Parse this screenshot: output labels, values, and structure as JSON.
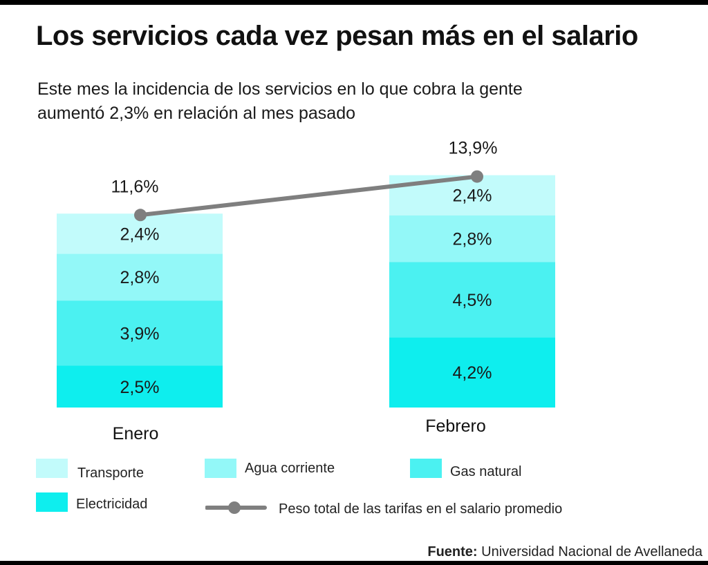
{
  "header": {
    "title": "Los servicios cada vez pesan más en el salario",
    "subtitle_line1": "Este mes la incidencia de los servicios en lo que cobra la gente",
    "subtitle_line2": "aumentó 2,3% en relación al mes pasado"
  },
  "colors": {
    "transporte": "#c2fbfb",
    "agua": "#93f8f8",
    "gas": "#4bf1f1",
    "electricidad": "#0eeeee",
    "line": "#7f7f7f"
  },
  "chart_data": {
    "type": "bar",
    "stacked": true,
    "categories": [
      "Enero",
      "Febrero"
    ],
    "series": [
      {
        "name": "Electricidad",
        "values": [
          2.5,
          4.2
        ],
        "labels": [
          "2,5%",
          "4,2%"
        ]
      },
      {
        "name": "Gas natural",
        "values": [
          3.9,
          4.5
        ],
        "labels": [
          "3,9%",
          "4,5%"
        ]
      },
      {
        "name": "Agua corriente",
        "values": [
          2.8,
          2.8
        ],
        "labels": [
          "2,8%",
          "2,8%"
        ]
      },
      {
        "name": "Transporte",
        "values": [
          2.4,
          2.4
        ],
        "labels": [
          "2,4%",
          "2,4%"
        ]
      }
    ],
    "line_series": {
      "name": "Peso total de las tarifas en el salario promedio",
      "values": [
        11.6,
        13.9
      ],
      "labels": [
        "11,6%",
        "13,9%"
      ]
    },
    "ylim": [
      0,
      14
    ]
  },
  "legend": {
    "transporte": "Transporte",
    "agua": "Agua corriente",
    "gas": "Gas natural",
    "electricidad": "Electricidad",
    "line": "Peso total de las tarifas en el salario promedio"
  },
  "source": {
    "label": "Fuente:",
    "text": "Universidad Nacional de Avellaneda"
  }
}
